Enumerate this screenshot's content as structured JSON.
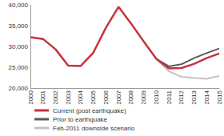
{
  "chart_data": {
    "type": "line",
    "categories": [
      "2000",
      "2001",
      "2002",
      "2003",
      "2004",
      "2005",
      "2006",
      "2007",
      "2008",
      "2009",
      "2010",
      "2011",
      "2012",
      "2013",
      "2014",
      "2015"
    ],
    "series": [
      {
        "name": "Current (post earthquake)",
        "color": "#c8323c",
        "values": [
          32200,
          31800,
          29300,
          25400,
          25300,
          28500,
          34500,
          39500,
          35500,
          31200,
          27000,
          24700,
          24800,
          25800,
          27200,
          28300
        ]
      },
      {
        "name": "Prior to earthquake",
        "color": "#5a5a5a",
        "values": [
          null,
          null,
          null,
          null,
          null,
          null,
          null,
          null,
          null,
          null,
          27000,
          25200,
          25700,
          27200,
          28400,
          29500
        ]
      },
      {
        "name": "Feb-2011 downside scenario",
        "color": "#c4c4c4",
        "values": [
          null,
          null,
          null,
          null,
          null,
          null,
          null,
          null,
          null,
          null,
          27000,
          24000,
          22700,
          22400,
          22200,
          22900
        ]
      }
    ],
    "ylim": [
      20000,
      40000
    ],
    "yticks": [
      {
        "value": 20000,
        "label": "20,000"
      },
      {
        "value": 25000,
        "label": "25,000"
      },
      {
        "value": 30000,
        "label": "30,000"
      },
      {
        "value": 35000,
        "label": "35,000"
      },
      {
        "value": 40000,
        "label": "40,000"
      }
    ],
    "grid": false,
    "legend": "bottom-left"
  }
}
